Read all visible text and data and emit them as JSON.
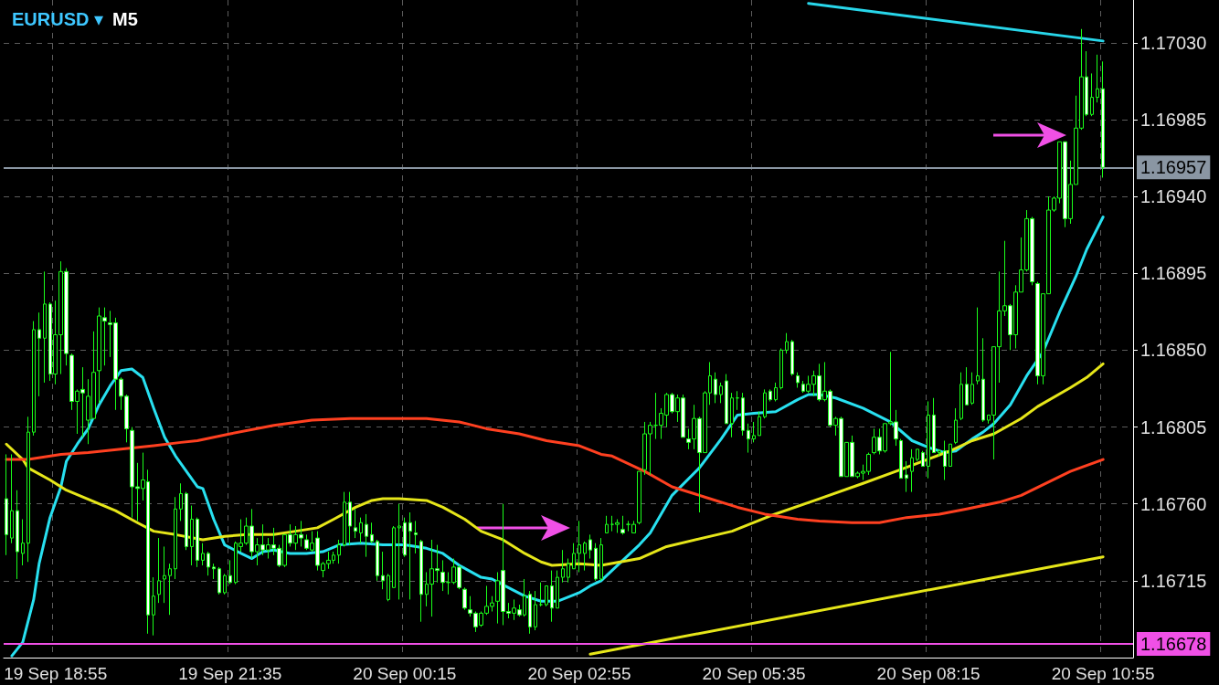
{
  "chart_data": {
    "type": "candlestick",
    "title": "EURUSD ▾",
    "subtitle": "M5",
    "color": "#1aff1a",
    "categories": [
      null,
      null,
      null,
      null,
      null,
      null,
      null,
      null,
      null,
      "19 Sep 18:55",
      null,
      null,
      null,
      null,
      null,
      null,
      null,
      null,
      null,
      null,
      null,
      null,
      null,
      null,
      null,
      null,
      null,
      null,
      null,
      null,
      null,
      null,
      null,
      null,
      null,
      null,
      null,
      null,
      null,
      null,
      null,
      "19 Sep 21:35",
      null,
      null,
      null,
      null,
      null,
      null,
      null,
      null,
      null,
      null,
      null,
      null,
      null,
      null,
      null,
      null,
      null,
      null,
      null,
      null,
      null,
      null,
      null,
      null,
      null,
      null,
      null,
      null,
      null,
      null,
      null,
      "20 Sep 00:15",
      null,
      null,
      null,
      null,
      null,
      null,
      null,
      null,
      null,
      null,
      null,
      null,
      null,
      null,
      null,
      null,
      null,
      null,
      null,
      null,
      null,
      null,
      null,
      null,
      null,
      null,
      null,
      null,
      null,
      null,
      null,
      "20 Sep 02:55",
      null,
      null,
      null,
      null,
      null,
      null,
      null,
      null,
      null,
      null,
      null,
      null,
      null,
      null,
      null,
      null,
      null,
      null,
      null,
      null,
      null,
      null,
      null,
      null,
      null,
      null,
      null,
      null,
      null,
      null,
      null,
      "20 Sep 05:35",
      null,
      null,
      null,
      null,
      null,
      null,
      null,
      null,
      null,
      null,
      null,
      null,
      null,
      null,
      null,
      null,
      null,
      null,
      null,
      null,
      null,
      null,
      null,
      null,
      null,
      null,
      null,
      null,
      null,
      null,
      null,
      "20 Sep 08:15",
      null,
      null,
      null,
      null,
      null,
      null,
      null,
      null,
      null,
      null,
      null,
      null,
      null,
      null,
      null,
      null,
      null,
      null,
      null,
      null,
      null,
      null,
      null,
      null,
      null,
      null,
      null,
      null,
      null,
      null,
      null,
      "20 Sep 10:55"
    ],
    "ohlc": [
      [
        1.16763,
        1.16789,
        1.1673,
        1.16742
      ],
      [
        1.1674,
        1.16789,
        1.16737,
        1.16756
      ],
      [
        1.16756,
        1.16768,
        1.16716,
        1.16732
      ],
      [
        1.16731,
        1.16751,
        1.16724,
        1.16737
      ],
      [
        1.16737,
        1.16811,
        1.16726,
        1.16802
      ],
      [
        1.16802,
        1.16867,
        1.168,
        1.16862
      ],
      [
        1.16862,
        1.16872,
        1.16823,
        1.16857
      ],
      [
        1.16857,
        1.16896,
        1.16831,
        1.16877
      ],
      [
        1.16877,
        1.16878,
        1.16832,
        1.16836
      ],
      [
        1.16836,
        1.16879,
        1.1683,
        1.16859
      ],
      [
        1.16859,
        1.16902,
        1.16836,
        1.16896
      ],
      [
        1.16896,
        1.16898,
        1.16841,
        1.16848
      ],
      [
        1.16847,
        1.16848,
        1.16815,
        1.1682
      ],
      [
        1.1682,
        1.16827,
        1.16801,
        1.16826
      ],
      [
        1.16827,
        1.1684,
        1.16799,
        1.16825
      ],
      [
        1.16809,
        1.16833,
        1.16795,
        1.16823
      ],
      [
        1.1681,
        1.16861,
        1.1681,
        1.16837
      ],
      [
        1.16838,
        1.16875,
        1.16819,
        1.1687
      ],
      [
        1.16869,
        1.16875,
        1.16841,
        1.16867
      ],
      [
        1.16866,
        1.16873,
        1.16846,
        1.16865
      ],
      [
        1.16866,
        1.16869,
        1.16815,
        1.16833
      ],
      [
        1.16833,
        1.16834,
        1.16815,
        1.16823
      ],
      [
        1.16823,
        1.16824,
        1.16796,
        1.16804
      ],
      [
        1.16803,
        1.16805,
        1.16752,
        1.1677
      ],
      [
        1.1677,
        1.16784,
        1.1675,
        1.16769
      ],
      [
        1.16769,
        1.1679,
        1.16762,
        1.16774
      ],
      [
        1.16773,
        1.1678,
        1.16684,
        1.16695
      ],
      [
        1.16695,
        1.16717,
        1.16683,
        1.16706
      ],
      [
        1.16707,
        1.1674,
        1.16702,
        1.16715
      ],
      [
        1.16716,
        1.16735,
        1.16702,
        1.16718
      ],
      [
        1.16718,
        1.16725,
        1.16695,
        1.16722
      ],
      [
        1.16722,
        1.16764,
        1.16716,
        1.16757
      ],
      [
        1.16757,
        1.16772,
        1.1675,
        1.16766
      ],
      [
        1.16766,
        1.16767,
        1.16733,
        1.16735
      ],
      [
        1.16735,
        1.16759,
        1.16724,
        1.16751
      ],
      [
        1.16751,
        1.16752,
        1.16723,
        1.16727
      ],
      [
        1.16727,
        1.16737,
        1.16724,
        1.16731
      ],
      [
        1.16731,
        1.16732,
        1.16718,
        1.16723
      ],
      [
        1.16723,
        1.16725,
        1.16716,
        1.16722
      ],
      [
        1.16722,
        1.16723,
        1.16707,
        1.16708
      ],
      [
        1.16708,
        1.16719,
        1.16707,
        1.16718
      ],
      [
        1.16718,
        1.16727,
        1.16713,
        1.16714
      ],
      [
        1.16714,
        1.16738,
        1.16713,
        1.16737
      ],
      [
        1.16735,
        1.16751,
        1.16732,
        1.16737
      ],
      [
        1.16737,
        1.16752,
        1.16736,
        1.16747
      ],
      [
        1.16747,
        1.16757,
        1.16728,
        1.16732
      ],
      [
        1.16732,
        1.1674,
        1.16724,
        1.16736
      ],
      [
        1.16736,
        1.16748,
        1.1673,
        1.16733
      ],
      [
        1.16733,
        1.1674,
        1.16728,
        1.16736
      ],
      [
        1.16736,
        1.16746,
        1.1673,
        1.16734
      ],
      [
        1.16734,
        1.16736,
        1.16723,
        1.16724
      ],
      [
        1.16724,
        1.16742,
        1.16723,
        1.16742
      ],
      [
        1.16742,
        1.16748,
        1.16735,
        1.16737
      ],
      [
        1.16737,
        1.16747,
        1.16733,
        1.16742
      ],
      [
        1.16742,
        1.1675,
        1.16735,
        1.1674
      ],
      [
        1.16739,
        1.16742,
        1.16733,
        1.16734
      ],
      [
        1.16733,
        1.16744,
        1.16732,
        1.16737
      ],
      [
        1.1674,
        1.16744,
        1.16721,
        1.16724
      ],
      [
        1.16721,
        1.16726,
        1.16717,
        1.16725
      ],
      [
        1.16725,
        1.16732,
        1.16722,
        1.16727
      ],
      [
        1.16727,
        1.16732,
        1.16725,
        1.1673
      ],
      [
        1.1673,
        1.16739,
        1.16725,
        1.16736
      ],
      [
        1.16736,
        1.16767,
        1.16735,
        1.16761
      ],
      [
        1.16761,
        1.16767,
        1.16736,
        1.16747
      ],
      [
        1.16746,
        1.16757,
        1.1674,
        1.16744
      ],
      [
        1.16743,
        1.16752,
        1.16737,
        1.16749
      ],
      [
        1.16748,
        1.16754,
        1.16729,
        1.16741
      ],
      [
        1.16742,
        1.16749,
        1.16737,
        1.16738
      ],
      [
        1.16738,
        1.16739,
        1.16715,
        1.16718
      ],
      [
        1.16718,
        1.16732,
        1.1671,
        1.16715
      ],
      [
        1.16704,
        1.16719,
        1.16703,
        1.16718
      ],
      [
        1.16711,
        1.16747,
        1.16711,
        1.16746
      ],
      [
        1.16746,
        1.1676,
        1.16704,
        1.16747
      ],
      [
        1.16749,
        1.16752,
        1.16729,
        1.1673
      ],
      [
        1.16749,
        1.16755,
        1.16704,
        1.16744
      ],
      [
        1.16743,
        1.1675,
        1.16731,
        1.16742
      ],
      [
        1.16738,
        1.16739,
        1.16691,
        1.16707
      ],
      [
        1.16707,
        1.1672,
        1.167,
        1.16713
      ],
      [
        1.16713,
        1.16739,
        1.16694,
        1.16722
      ],
      [
        1.16722,
        1.16736,
        1.16714,
        1.16721
      ],
      [
        1.1672,
        1.16727,
        1.16709,
        1.16714
      ],
      [
        1.16714,
        1.1672,
        1.16707,
        1.16714
      ],
      [
        1.16714,
        1.16728,
        1.16713,
        1.16723
      ],
      [
        1.16723,
        1.16724,
        1.1671,
        1.16711
      ],
      [
        1.1671,
        1.16711,
        1.16698,
        1.16699
      ],
      [
        1.16698,
        1.16706,
        1.16694,
        1.16696
      ],
      [
        1.16696,
        1.16697,
        1.16685,
        1.16688
      ],
      [
        1.16689,
        1.16697,
        1.16688,
        1.16696
      ],
      [
        1.16696,
        1.16712,
        1.16695,
        1.167
      ],
      [
        1.167,
        1.16706,
        1.16697,
        1.16702
      ],
      [
        1.16703,
        1.1672,
        1.1669,
        1.16715
      ],
      [
        1.16721,
        1.1676,
        1.16689,
        1.16697
      ],
      [
        1.16697,
        1.16702,
        1.16693,
        1.16696
      ],
      [
        1.16696,
        1.16704,
        1.16692,
        1.16699
      ],
      [
        1.16698,
        1.16701,
        1.16694,
        1.16695
      ],
      [
        1.16695,
        1.16716,
        1.16694,
        1.16706
      ],
      [
        1.16707,
        1.16709,
        1.16684,
        1.16688
      ],
      [
        1.16688,
        1.16709,
        1.16686,
        1.16701
      ],
      [
        1.16701,
        1.16714,
        1.167,
        1.16701
      ],
      [
        1.16701,
        1.16712,
        1.167,
        1.16712
      ],
      [
        1.16712,
        1.16721,
        1.16691,
        1.16699
      ],
      [
        1.16699,
        1.16721,
        1.16699,
        1.16717
      ],
      [
        1.16717,
        1.16733,
        1.16714,
        1.16722
      ],
      [
        1.16717,
        1.16728,
        1.16714,
        1.16725
      ],
      [
        1.16722,
        1.16737,
        1.16722,
        1.16731
      ],
      [
        1.16731,
        1.1675,
        1.1672,
        1.16736
      ],
      [
        1.16731,
        1.16738,
        1.16721,
        1.16737
      ],
      [
        1.16739,
        1.16742,
        1.16728,
        1.16733
      ],
      [
        1.16734,
        1.16737,
        1.16715,
        1.16716
      ],
      [
        1.16716,
        1.1674,
        1.16715,
        1.16736
      ],
      [
        1.16743,
        1.16753,
        1.16743,
        1.16748
      ],
      [
        1.16748,
        1.16753,
        1.16744,
        1.16748
      ],
      [
        1.16748,
        1.16751,
        1.16743,
        1.16749
      ],
      [
        1.16745,
        1.16753,
        1.16742,
        1.16743
      ],
      [
        1.16748,
        1.1675,
        1.16744,
        1.16748
      ],
      [
        1.16743,
        1.1675,
        1.16743,
        1.16748
      ],
      [
        1.16749,
        1.16779,
        1.16748,
        1.16779
      ],
      [
        1.1678,
        1.16808,
        1.16777,
        1.16801
      ],
      [
        1.16801,
        1.16808,
        1.16777,
        1.16806
      ],
      [
        1.16806,
        1.16825,
        1.16798,
        1.16806
      ],
      [
        1.16806,
        1.16816,
        1.16798,
        1.16813
      ],
      [
        1.16812,
        1.16825,
        1.16805,
        1.16824
      ],
      [
        1.16824,
        1.16825,
        1.16813,
        1.16814
      ],
      [
        1.16814,
        1.16824,
        1.16808,
        1.16822
      ],
      [
        1.16822,
        1.16824,
        1.16799,
        1.16799
      ],
      [
        1.16798,
        1.16804,
        1.16792,
        1.16796
      ],
      [
        1.16798,
        1.16818,
        1.16792,
        1.1681
      ],
      [
        1.1681,
        1.16811,
        1.16755,
        1.1679
      ],
      [
        1.1679,
        1.16826,
        1.1679,
        1.16825
      ],
      [
        1.16825,
        1.16843,
        1.16818,
        1.16835
      ],
      [
        1.16833,
        1.16837,
        1.16819,
        1.16824
      ],
      [
        1.16824,
        1.16831,
        1.16819,
        1.16829
      ],
      [
        1.16832,
        1.16836,
        1.16807,
        1.16807
      ],
      [
        1.16807,
        1.16825,
        1.16799,
        1.16822
      ],
      [
        1.16822,
        1.16826,
        1.16815,
        1.16822
      ],
      [
        1.16822,
        1.16825,
        1.168,
        1.16803
      ],
      [
        1.16803,
        1.16807,
        1.1679,
        1.16798
      ],
      [
        1.16798,
        1.16808,
        1.16796,
        1.168
      ],
      [
        1.168,
        1.16814,
        1.168,
        1.16811
      ],
      [
        1.16811,
        1.16827,
        1.1681,
        1.16825
      ],
      [
        1.16826,
        1.16827,
        1.1682,
        1.16821
      ],
      [
        1.16821,
        1.16831,
        1.1682,
        1.16828
      ],
      [
        1.16828,
        1.16851,
        1.16827,
        1.1685
      ],
      [
        1.1685,
        1.1686,
        1.16848,
        1.16855
      ],
      [
        1.16855,
        1.16856,
        1.16835,
        1.16836
      ],
      [
        1.16835,
        1.16837,
        1.16828,
        1.16831
      ],
      [
        1.1683,
        1.16832,
        1.16825,
        1.16826
      ],
      [
        1.16826,
        1.16835,
        1.16825,
        1.1683
      ],
      [
        1.1683,
        1.16838,
        1.16823,
        1.16835
      ],
      [
        1.16835,
        1.16842,
        1.1682,
        1.16821
      ],
      [
        1.16821,
        1.16843,
        1.1682,
        1.16826
      ],
      [
        1.16826,
        1.16827,
        1.16805,
        1.16806
      ],
      [
        1.16806,
        1.16811,
        1.168,
        1.1681
      ],
      [
        1.1681,
        1.16811,
        1.16776,
        1.16776
      ],
      [
        1.16776,
        1.16796,
        1.16776,
        1.16796
      ],
      [
        1.16796,
        1.168,
        1.16776,
        1.16776
      ],
      [
        1.16776,
        1.16779,
        1.16775,
        1.16778
      ],
      [
        1.16778,
        1.16783,
        1.16774,
        1.16779
      ],
      [
        1.16779,
        1.1679,
        1.16777,
        1.16789
      ],
      [
        1.1679,
        1.16804,
        1.16789,
        1.16799
      ],
      [
        1.16799,
        1.16804,
        1.16789,
        1.16791
      ],
      [
        1.16791,
        1.16807,
        1.1679,
        1.16807
      ],
      [
        1.16807,
        1.16849,
        1.16806,
        1.16808
      ],
      [
        1.16808,
        1.16815,
        1.16794,
        1.16798
      ],
      [
        1.16797,
        1.16798,
        1.16775,
        1.16775
      ],
      [
        1.16777,
        1.16785,
        1.16767,
        1.16775
      ],
      [
        1.16779,
        1.16792,
        1.16767,
        1.16787
      ],
      [
        1.16786,
        1.16792,
        1.16785,
        1.16792
      ],
      [
        1.1679,
        1.16791,
        1.16782,
        1.16782
      ],
      [
        1.16782,
        1.1682,
        1.16775,
        1.16812
      ],
      [
        1.16812,
        1.16822,
        1.1679,
        1.1679
      ],
      [
        1.1679,
        1.16792,
        1.16788,
        1.16791
      ],
      [
        1.16791,
        1.16797,
        1.16774,
        1.16782
      ],
      [
        1.16782,
        1.16795,
        1.16782,
        1.16795
      ],
      [
        1.16796,
        1.16816,
        1.16795,
        1.16809
      ],
      [
        1.1681,
        1.16837,
        1.16809,
        1.1683
      ],
      [
        1.1683,
        1.1684,
        1.16818,
        1.16818
      ],
      [
        1.16819,
        1.16837,
        1.16818,
        1.1683
      ],
      [
        1.16832,
        1.16875,
        1.1683,
        1.16835
      ],
      [
        1.16833,
        1.16857,
        1.16808,
        1.16809
      ],
      [
        1.16809,
        1.16812,
        1.16807,
        1.16812
      ],
      [
        1.16812,
        1.16852,
        1.16786,
        1.16852
      ],
      [
        1.16852,
        1.16896,
        1.16831,
        1.16873
      ],
      [
        1.16873,
        1.16914,
        1.1687,
        1.16876
      ],
      [
        1.16876,
        1.16877,
        1.1685,
        1.16859
      ],
      [
        1.16859,
        1.16888,
        1.16851,
        1.16884
      ],
      [
        1.16884,
        1.16916,
        1.16884,
        1.16897
      ],
      [
        1.16897,
        1.16932,
        1.16896,
        1.16927
      ],
      [
        1.16927,
        1.16928,
        1.16888,
        1.1689
      ],
      [
        1.16889,
        1.1689,
        1.1683,
        1.16835
      ],
      [
        1.16835,
        1.16883,
        1.1683,
        1.16883
      ],
      [
        1.16883,
        1.1694,
        1.16883,
        1.16932
      ],
      [
        1.16932,
        1.1694,
        1.16931,
        1.16939
      ],
      [
        1.16939,
        1.16972,
        1.16936,
        1.16972
      ],
      [
        1.16972,
        1.16972,
        1.16922,
        1.16927
      ],
      [
        1.16927,
        1.16961,
        1.16924,
        1.16947
      ],
      [
        1.16947,
        1.16999,
        1.16947,
        1.1698
      ],
      [
        1.1698,
        1.17038,
        1.16979,
        1.1701
      ],
      [
        1.1701,
        1.17025,
        1.16987,
        1.16988
      ],
      [
        1.16988,
        1.17012,
        1.16987,
        1.16998
      ],
      [
        1.16998,
        1.17023,
        1.16995,
        1.17003
      ],
      [
        1.17003,
        1.17019,
        1.16951,
        1.16957
      ]
    ],
    "series": [
      {
        "type": "line",
        "color": "#28e0f0",
        "values": [
          null,
          1.16671,
          null,
          1.16679,
          null,
          1.16704,
          1.16725,
          null,
          1.16752,
          null,
          1.1677,
          1.16785,
          null,
          1.16795,
          null,
          1.16804,
          null,
          1.16818,
          null,
          1.16829,
          null,
          1.16838,
          null,
          1.16839,
          null,
          1.16834,
          null,
          1.16816,
          null,
          1.16799,
          null,
          1.16788,
          null,
          null,
          null,
          1.1677,
          1.16769,
          null,
          1.16751,
          null,
          1.16736,
          null,
          null,
          1.16731,
          null,
          1.16728,
          null,
          1.16732,
          null,
          1.16733,
          null,
          null,
          1.16731,
          null,
          null,
          1.16731,
          null,
          null,
          1.16732,
          null,
          null,
          1.16736,
          null,
          null,
          null,
          1.16737,
          null,
          null,
          null,
          1.16736,
          null,
          null,
          null,
          1.16736,
          null,
          null,
          null,
          1.16734,
          null,
          null,
          1.16731,
          null,
          null,
          1.16724,
          null,
          null,
          null,
          1.16717,
          null,
          1.16716,
          null,
          null,
          1.16711,
          null,
          null,
          1.16706,
          null,
          null,
          1.16703,
          null,
          null,
          1.16703,
          null,
          null,
          null,
          1.16708,
          null,
          1.16712,
          null,
          1.16715,
          null,
          null,
          null,
          1.16727,
          null,
          null,
          1.16736,
          null,
          1.16743,
          null,
          null,
          null,
          1.16765,
          null,
          null,
          null,
          null,
          1.16781,
          null,
          null,
          null,
          1.16798,
          null,
          null,
          1.16812,
          null,
          null,
          1.16813,
          null,
          null,
          null,
          1.16814,
          null,
          null,
          null,
          1.16821,
          null,
          1.16824,
          null,
          1.16824,
          null,
          null,
          1.16822,
          null,
          null,
          null,
          null,
          1.16816,
          null,
          null,
          null,
          null,
          1.16808,
          null,
          null,
          null,
          1.16797,
          null,
          null,
          1.16793,
          null,
          null,
          1.1679,
          null,
          1.16791,
          null,
          null,
          1.16798,
          null,
          1.16802,
          null,
          1.16807,
          null,
          null,
          1.16818,
          null,
          null,
          1.16835,
          null,
          null,
          1.16849,
          null,
          null,
          1.16872,
          null,
          null,
          1.16893,
          null,
          1.16909,
          null,
          null,
          1.16928
        ]
      },
      {
        "type": "line",
        "color": "#e6e619",
        "values": [
          1.16795,
          null,
          null,
          1.16786,
          1.16781,
          null,
          null,
          null,
          1.16774,
          null,
          null,
          1.16768,
          null,
          null,
          1.16764,
          null,
          null,
          1.1676,
          null,
          null,
          1.16756,
          null,
          null,
          null,
          1.16749,
          null,
          null,
          1.16744,
          null,
          null,
          null,
          1.16742,
          null,
          null,
          null,
          null,
          1.16739,
          null,
          null,
          null,
          1.16741,
          null,
          null,
          null,
          1.16742,
          null,
          null,
          null,
          null,
          1.16742,
          null,
          null,
          null,
          1.16744,
          null,
          null,
          null,
          1.16746,
          null,
          null,
          1.16751,
          null,
          null,
          null,
          1.16758,
          null,
          null,
          1.16762,
          null,
          1.16763,
          null,
          null,
          1.16763,
          null,
          null,
          null,
          null,
          1.16762,
          null,
          null,
          1.16758,
          null,
          null,
          null,
          1.16751,
          null,
          null,
          1.16744,
          null,
          null,
          null,
          1.16739,
          null,
          null,
          null,
          1.16731,
          null,
          null,
          1.16726,
          null,
          1.16724,
          null,
          null,
          null,
          null,
          1.16725,
          null,
          null,
          null,
          1.16724,
          null,
          null,
          null,
          null,
          null,
          null,
          1.16728,
          null,
          null,
          null,
          null,
          1.16735,
          null,
          null,
          null,
          null,
          null,
          null,
          null,
          null,
          null,
          null,
          null,
          1.16744,
          null,
          null,
          null,
          null,
          null,
          null,
          1.16753,
          null,
          null,
          null,
          null,
          null,
          null,
          null,
          null,
          1.16763,
          null,
          null,
          null,
          null,
          null,
          null,
          null,
          1.16772,
          null,
          null,
          null,
          null,
          null,
          1.16779,
          null,
          null,
          null,
          null,
          1.16785,
          null,
          null,
          null,
          null,
          1.16791,
          null,
          null,
          null,
          1.16797,
          null,
          null,
          null,
          1.16801,
          null,
          null,
          null,
          null,
          1.1681,
          null,
          null,
          1.16817,
          null,
          null,
          null,
          null,
          null,
          1.16828,
          null,
          null,
          1.16834,
          null,
          null,
          1.16842
        ]
      },
      {
        "type": "line",
        "color": "#ff4020",
        "values": [
          1.16786,
          null,
          null,
          null,
          1.16786,
          null,
          null,
          null,
          null,
          null,
          1.16789,
          null,
          null,
          null,
          null,
          1.1679,
          null,
          null,
          null,
          null,
          null,
          1.16792,
          null,
          null,
          null,
          null,
          null,
          1.16794,
          null,
          null,
          null,
          null,
          1.16796,
          null,
          null,
          1.16797,
          null,
          null,
          null,
          null,
          null,
          1.16801,
          null,
          null,
          null,
          null,
          null,
          null,
          null,
          1.16806,
          null,
          null,
          null,
          null,
          null,
          null,
          1.16809,
          null,
          null,
          null,
          null,
          null,
          null,
          1.1681,
          null,
          null,
          null,
          null,
          null,
          1.1681,
          null,
          null,
          null,
          null,
          null,
          null,
          null,
          1.1681,
          null,
          null,
          null,
          null,
          null,
          1.16808,
          null,
          null,
          null,
          null,
          1.16804,
          null,
          null,
          null,
          null,
          null,
          1.16801,
          null,
          null,
          null,
          null,
          1.16797,
          null,
          null,
          null,
          null,
          null,
          1.16794,
          null,
          null,
          null,
          1.16789,
          null,
          1.16788,
          null,
          null,
          null,
          null,
          null,
          1.16779,
          null,
          null,
          null,
          null,
          1.1677,
          null,
          null,
          null,
          null,
          null,
          1.16764,
          null,
          null,
          null,
          null,
          null,
          1.16758,
          null,
          null,
          null,
          null,
          1.16754,
          null,
          null,
          null,
          null,
          null,
          1.16751,
          null,
          null,
          null,
          1.1675,
          null,
          null,
          null,
          null,
          null,
          1.16749,
          null,
          null,
          null,
          null,
          1.16749,
          null,
          null,
          null,
          null,
          1.16752,
          null,
          null,
          null,
          null,
          null,
          1.16754,
          null,
          null,
          null,
          null,
          1.16757,
          null,
          null,
          null,
          null,
          null,
          1.16761,
          null,
          null,
          null,
          1.16765,
          null,
          null,
          null,
          null,
          null,
          null,
          null,
          null,
          1.16779,
          null,
          null,
          null,
          null,
          null,
          1.16786
        ]
      },
      {
        "type": "line",
        "color": "#28d6ea",
        "values": [
          null,
          null,
          null,
          null,
          null,
          null,
          null,
          null,
          null,
          null,
          null,
          null,
          null,
          null,
          null,
          null,
          null,
          null,
          null,
          null,
          null,
          null,
          null,
          null,
          null,
          null,
          null,
          null,
          null,
          null,
          null,
          null,
          null,
          null,
          null,
          null,
          null,
          null,
          null,
          null,
          null,
          null,
          null,
          null,
          null,
          null,
          null,
          null,
          null,
          null,
          null,
          null,
          null,
          null,
          null,
          null,
          null,
          null,
          null,
          null,
          null,
          null,
          null,
          null,
          null,
          null,
          null,
          null,
          null,
          null,
          null,
          null,
          null,
          null,
          null,
          null,
          null,
          null,
          null,
          null,
          null,
          null,
          null,
          null,
          null,
          null,
          null,
          null,
          null,
          null,
          null,
          null,
          null,
          null,
          null,
          null,
          null,
          null,
          null,
          null,
          null,
          null,
          null,
          null,
          null,
          null,
          null,
          null,
          null,
          null,
          null,
          null,
          null,
          null,
          null,
          null,
          null,
          null,
          null,
          null,
          null,
          null,
          null,
          null,
          null,
          null,
          null,
          null,
          null,
          null,
          null,
          null,
          null,
          null,
          null,
          null,
          null,
          null,
          null,
          null,
          null,
          null,
          null,
          null,
          null,
          null,
          null,
          1.17053,
          null,
          null,
          null,
          null,
          null,
          null,
          null,
          null,
          null,
          null,
          null,
          null,
          null,
          null,
          null,
          null,
          null,
          null,
          null,
          null,
          null,
          null,
          null,
          null,
          null,
          null,
          null,
          null,
          null,
          null,
          null,
          null,
          null,
          null,
          null,
          null,
          null,
          null,
          null,
          null,
          null,
          null,
          null,
          null,
          null,
          null,
          null,
          null,
          null,
          null,
          null,
          null,
          null,
          1.17031
        ]
      },
      {
        "type": "line",
        "color": "#e6e619",
        "values": [
          null,
          null,
          null,
          null,
          null,
          null,
          null,
          null,
          null,
          null,
          null,
          null,
          null,
          null,
          null,
          null,
          null,
          null,
          null,
          null,
          null,
          null,
          null,
          null,
          null,
          null,
          null,
          null,
          null,
          null,
          null,
          null,
          null,
          null,
          null,
          null,
          null,
          null,
          null,
          null,
          null,
          null,
          null,
          null,
          null,
          null,
          null,
          null,
          null,
          null,
          null,
          null,
          null,
          null,
          null,
          null,
          null,
          null,
          null,
          null,
          null,
          null,
          null,
          null,
          null,
          null,
          null,
          null,
          null,
          null,
          null,
          null,
          null,
          null,
          null,
          null,
          null,
          null,
          null,
          null,
          null,
          null,
          null,
          null,
          null,
          null,
          null,
          null,
          null,
          null,
          null,
          null,
          null,
          null,
          null,
          null,
          null,
          null,
          null,
          null,
          null,
          null,
          null,
          null,
          null,
          null,
          null,
          1.16672,
          null,
          null,
          null,
          null,
          null,
          null,
          null,
          null,
          null,
          null,
          null,
          null,
          null,
          null,
          null,
          null,
          null,
          null,
          null,
          null,
          null,
          null,
          null,
          null,
          null,
          null,
          null,
          null,
          null,
          null,
          null,
          null,
          null,
          null,
          null,
          null,
          null,
          null,
          null,
          null,
          null,
          null,
          null,
          null,
          null,
          null,
          null,
          null,
          null,
          null,
          null,
          null,
          null,
          null,
          null,
          null,
          null,
          null,
          null,
          null,
          null,
          null,
          null,
          null,
          null,
          null,
          null,
          null,
          null,
          null,
          null,
          null,
          null,
          null,
          null,
          null,
          null,
          null,
          null,
          null,
          null,
          null,
          null,
          null,
          null,
          null,
          null,
          null,
          null,
          null,
          null,
          null,
          null,
          1.16729
        ]
      }
    ],
    "ylim": [
      1.1667,
      1.17055
    ],
    "yticks": [
      1.16715,
      {
        "value": 1.1676,
        "label": "1.16760"
      },
      1.16805,
      {
        "value": 1.1685,
        "label": "1.16850"
      },
      1.16895,
      {
        "value": 1.1694,
        "label": "1.16940"
      },
      1.16985,
      {
        "value": 1.1703,
        "label": "1.17030"
      }
    ],
    "ref_lines": [
      {
        "axis": "y",
        "value": 1.16678,
        "label": "1.16678",
        "color": "#f050e6"
      },
      {
        "axis": "y",
        "value": 1.16957,
        "label": "1.16957",
        "color": "#8a96a3"
      }
    ],
    "grid": true
  }
}
